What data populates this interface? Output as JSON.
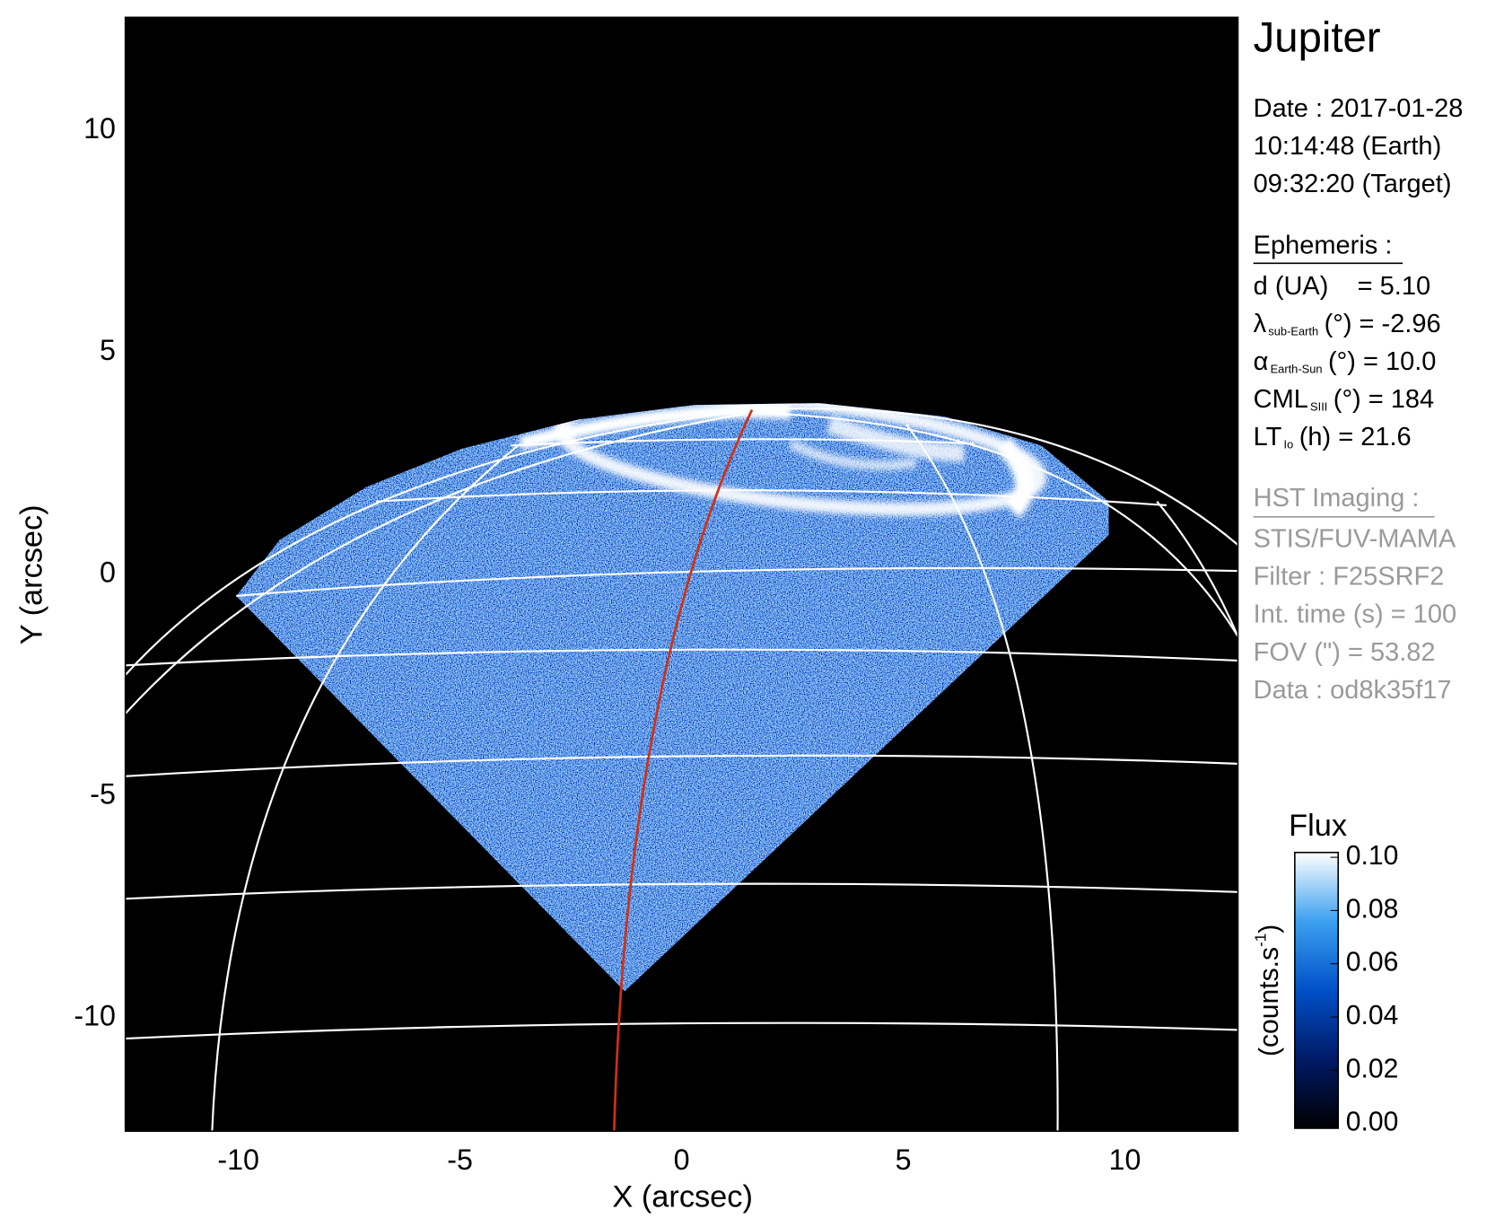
{
  "chart_data": {
    "type": "image",
    "title": "Jupiter",
    "xlabel": "X (arcsec)",
    "ylabel": "Y (arcsec)",
    "xlim": [
      -12.55,
      12.55
    ],
    "ylim": [
      -12.55,
      12.55
    ],
    "xticks": [
      -10,
      -5,
      0,
      5,
      10
    ],
    "yticks": [
      -10,
      -5,
      0,
      5,
      10
    ],
    "colorbar": {
      "title": "Flux",
      "label": {
        "text": "(counts.s",
        "sup": "-1",
        "end": ")"
      },
      "clim": [
        0,
        0.1
      ],
      "ticks": [
        {
          "value": 0,
          "label": "0.00"
        },
        {
          "value": 0.02,
          "label": "0.02"
        },
        {
          "value": 0.04,
          "label": "0.04"
        },
        {
          "value": 0.06,
          "label": "0.06"
        },
        {
          "value": 0.08,
          "label": "0.08"
        },
        {
          "value": 0.1,
          "label": "0.10"
        }
      ],
      "colors": [
        "#000000",
        "#001a66",
        "#0050c8",
        "#3ca0f0",
        "#ffffff"
      ]
    },
    "info": {
      "date": [
        "Date : 2017-01-28",
        "10:14:48 (Earth)",
        "09:32:20 (Target)"
      ],
      "ephemeris": {
        "heading": "Ephemeris :",
        "lines": [
          {
            "label": "d (UA)",
            "rest": "= 5.10"
          },
          {
            "label": "λ",
            "sub": "sub-Earth",
            "rest": "(°) = -2.96"
          },
          {
            "label": "α",
            "sub": "Earth-Sun",
            "rest": "(°) = 10.0"
          },
          {
            "label": "CML",
            "sub": "SIII",
            "rest": "(°) = 184"
          },
          {
            "label": "LT",
            "sub": "Io",
            "rest": "(h) = 21.6"
          }
        ]
      },
      "imaging": {
        "heading": "HST Imaging :",
        "lines": [
          "STIS/FUV-MAMA",
          "Filter : F25SRF2",
          "Int. time (s) = 100",
          "FOV (\") = 53.82",
          "Data : od8k35f17"
        ]
      }
    }
  }
}
